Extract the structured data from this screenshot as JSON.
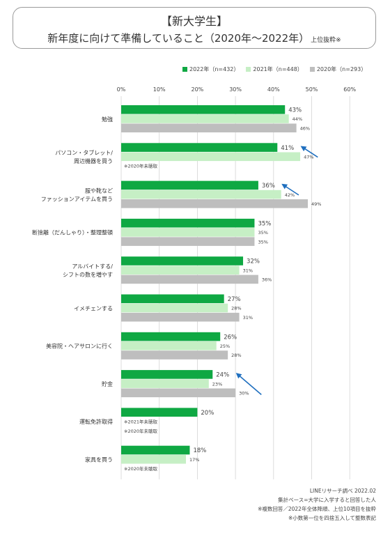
{
  "header": {
    "title_line1": "【新大学生】",
    "title_line2": "新年度に向けて準備していること（2020年〜2022年）",
    "title_suffix": "上位抜粋※"
  },
  "colors": {
    "s2022": "#0fa843",
    "s2021": "#c6efc5",
    "s2020": "#bebebe",
    "arrow": "#1f6fbf",
    "grid": "#d4d4d4"
  },
  "chart_data": {
    "type": "bar",
    "orientation": "horizontal",
    "xlim": [
      0,
      60
    ],
    "xticks": [
      "0%",
      "10%",
      "20%",
      "30%",
      "40%",
      "50%",
      "60%"
    ],
    "grid": true,
    "legend_position": "top-right",
    "series": [
      {
        "name": "2022年（n=432）",
        "color": "#0fa843",
        "values": [
          43,
          41,
          36,
          35,
          32,
          27,
          26,
          24,
          20,
          18
        ]
      },
      {
        "name": "2021年（n=448）",
        "color": "#c6efc5",
        "values": [
          44,
          47,
          42,
          35,
          31,
          28,
          25,
          23,
          null,
          17
        ]
      },
      {
        "name": "2020年（n=293）",
        "color": "#bebebe",
        "values": [
          46,
          null,
          49,
          35,
          36,
          31,
          28,
          30,
          null,
          null
        ]
      }
    ],
    "categories": [
      {
        "lines": [
          "勉強"
        ],
        "notes": []
      },
      {
        "lines": [
          "パソコン・タブレット/",
          "周辺機器を買う"
        ],
        "notes": [
          "※2020年未聴取"
        ]
      },
      {
        "lines": [
          "服や靴など",
          "ファッションアイテムを買う"
        ],
        "notes": []
      },
      {
        "lines": [
          "断捨離（だんしゃり）・整理整頓"
        ],
        "notes": []
      },
      {
        "lines": [
          "アルバイトする/",
          "シフトの数を増やす"
        ],
        "notes": []
      },
      {
        "lines": [
          "イメチェンする"
        ],
        "notes": []
      },
      {
        "lines": [
          "美容院・ヘアサロンに行く"
        ],
        "notes": []
      },
      {
        "lines": [
          "貯金"
        ],
        "notes": []
      },
      {
        "lines": [
          "運転免許取得"
        ],
        "notes": [
          "※2021年未聴取",
          "※2020年未聴取"
        ]
      },
      {
        "lines": [
          "家具を買う"
        ],
        "notes": [
          "※2020年未聴取"
        ]
      }
    ],
    "annotations": [
      {
        "category_index": 1,
        "direction": "up"
      },
      {
        "category_index": 2,
        "direction": "up"
      },
      {
        "category_index": 7,
        "direction": "down"
      }
    ]
  },
  "footer": {
    "notes": [
      "LINEリサーチ調べ 2022.02",
      "集計ベース=大学に入学すると回答した人",
      "※複数回答／2022年全体降順、上位10項目を抜粋",
      "※小数第一位を四捨五入して整数表記"
    ]
  }
}
